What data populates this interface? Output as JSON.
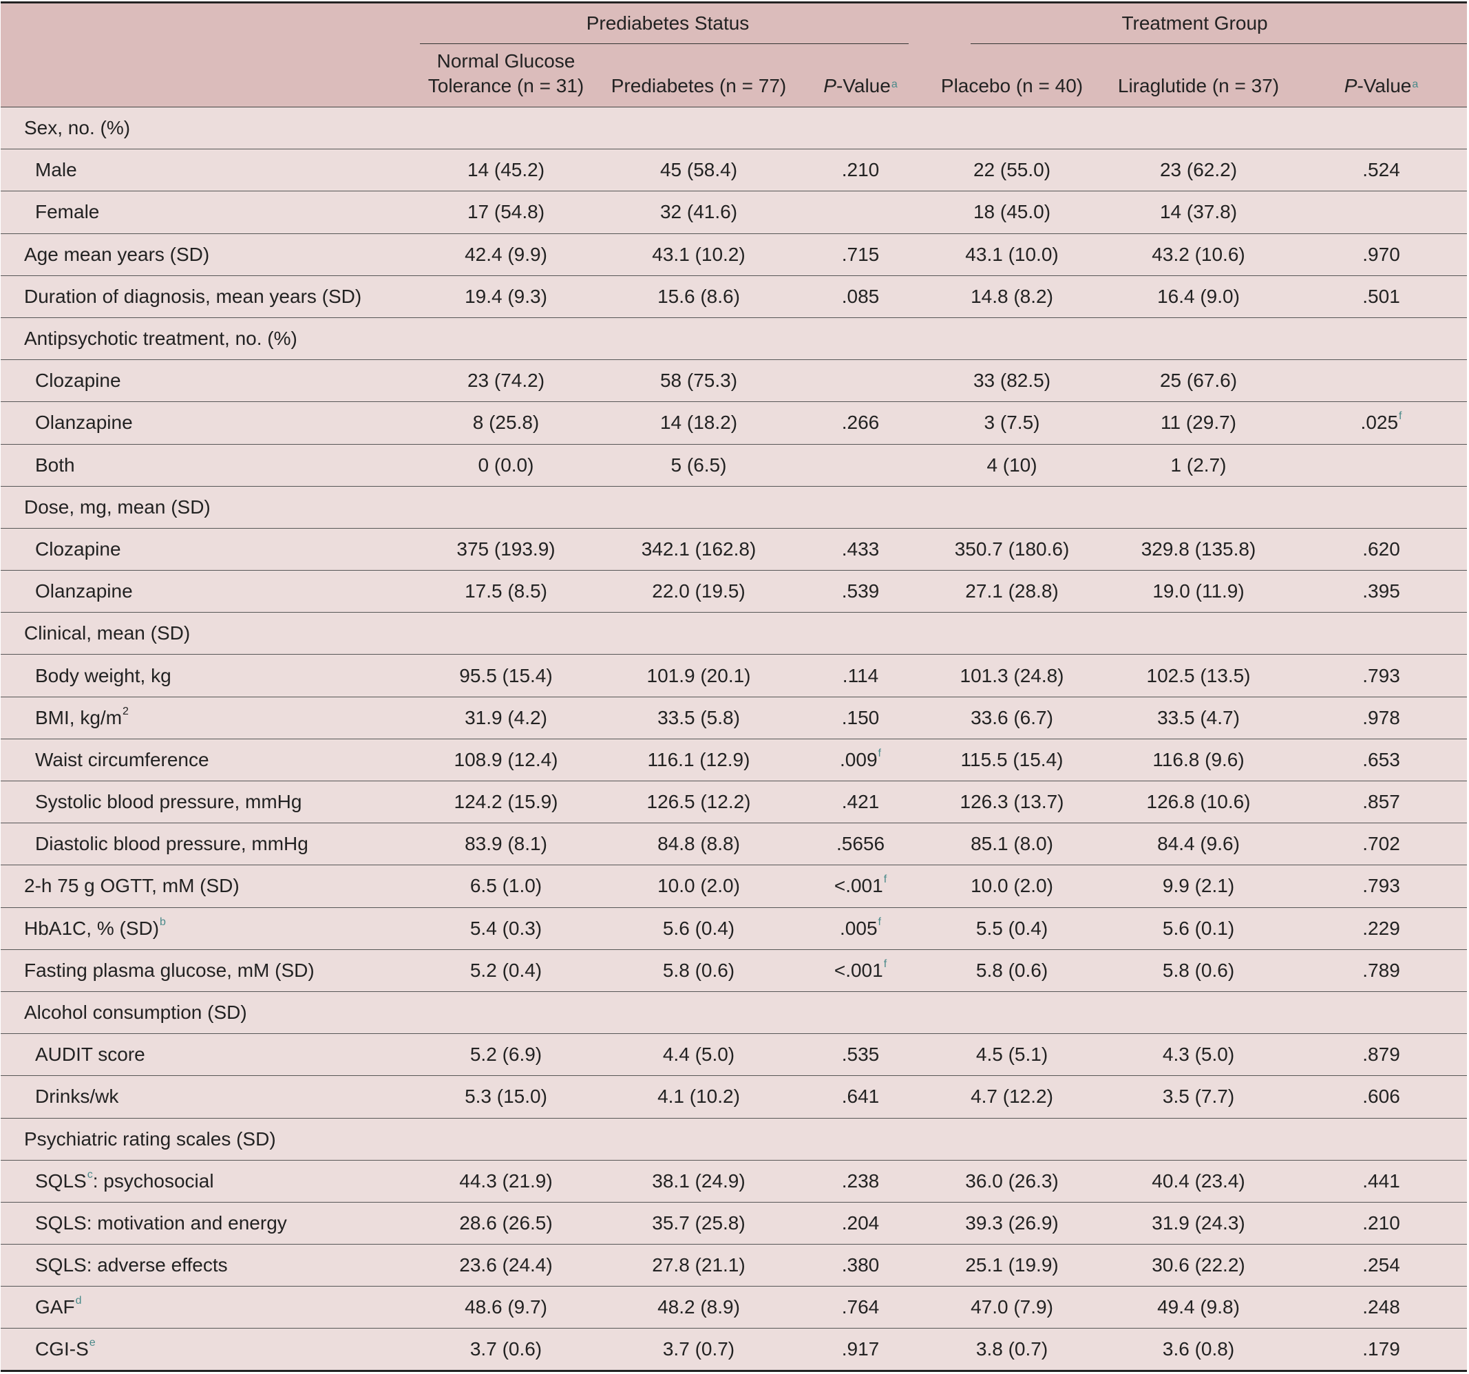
{
  "header": {
    "group1": "Prediabetes Status",
    "group2": "Treatment Group",
    "columns": [
      {
        "line1": "Normal Glucose",
        "line2": "Tolerance (n = 31)"
      },
      {
        "line1": "",
        "line2": "Prediabetes (n = 77)"
      },
      {
        "p_italic": "P",
        "p_rest": "-Value",
        "sup": "a"
      },
      {
        "line1": "",
        "line2": "Placebo (n = 40)"
      },
      {
        "line1": "",
        "line2": "Liraglutide (n = 37)"
      },
      {
        "p_italic": "P",
        "p_rest": "-Value",
        "sup": "a"
      }
    ]
  },
  "rows": [
    {
      "label": "Sex, no. (%)",
      "type": "sec",
      "cells": [
        "",
        "",
        "",
        "",
        "",
        ""
      ]
    },
    {
      "label": "Male",
      "type": "sub",
      "cells": [
        "14 (45.2)",
        "45 (58.4)",
        ".210",
        "22 (55.0)",
        "23 (62.2)",
        ".524"
      ]
    },
    {
      "label": "Female",
      "type": "sub",
      "cells": [
        "17 (54.8)",
        "32 (41.6)",
        "",
        "18 (45.0)",
        "14 (37.8)",
        ""
      ]
    },
    {
      "label": "Age mean years (SD)",
      "type": "sec",
      "cells": [
        "42.4 (9.9)",
        "43.1 (10.2)",
        ".715",
        "43.1 (10.0)",
        "43.2 (10.6)",
        ".970"
      ]
    },
    {
      "label": "Duration of diagnosis, mean years (SD)",
      "type": "sec",
      "cells": [
        "19.4 (9.3)",
        "15.6 (8.6)",
        ".085",
        "14.8 (8.2)",
        "16.4 (9.0)",
        ".501"
      ]
    },
    {
      "label": "Antipsychotic treatment, no. (%)",
      "type": "sec",
      "cells": [
        "",
        "",
        "",
        "",
        "",
        ""
      ]
    },
    {
      "label": "Clozapine",
      "type": "sub",
      "cells": [
        "23 (74.2)",
        "58 (75.3)",
        "",
        "33 (82.5)",
        "25 (67.6)",
        ""
      ]
    },
    {
      "label": "Olanzapine",
      "type": "sub",
      "cells": [
        "8 (25.8)",
        "14 (18.2)",
        ".266",
        "3 (7.5)",
        "11 (29.7)",
        ".025"
      ],
      "sups": {
        "5": "f"
      }
    },
    {
      "label": "Both",
      "type": "sub",
      "cells": [
        "0 (0.0)",
        "5 (6.5)",
        "",
        "4 (10)",
        "1 (2.7)",
        ""
      ]
    },
    {
      "label": "Dose, mg, mean (SD)",
      "type": "sec",
      "cells": [
        "",
        "",
        "",
        "",
        "",
        ""
      ]
    },
    {
      "label": "Clozapine",
      "type": "sub",
      "cells": [
        "375 (193.9)",
        "342.1 (162.8)",
        ".433",
        "350.7 (180.6)",
        "329.8 (135.8)",
        ".620"
      ]
    },
    {
      "label": "Olanzapine",
      "type": "sub",
      "cells": [
        "17.5 (8.5)",
        "22.0 (19.5)",
        ".539",
        "27.1 (28.8)",
        "19.0 (11.9)",
        ".395"
      ]
    },
    {
      "label": "Clinical, mean (SD)",
      "type": "sec",
      "cells": [
        "",
        "",
        "",
        "",
        "",
        ""
      ]
    },
    {
      "label": "Body weight, kg",
      "type": "sub",
      "cells": [
        "95.5 (15.4)",
        "101.9 (20.1)",
        ".114",
        "101.3 (24.8)",
        "102.5 (13.5)",
        ".793"
      ]
    },
    {
      "label": "BMI, kg/m",
      "type": "sub",
      "label_sup": "2",
      "label_sup_plain": true,
      "cells": [
        "31.9 (4.2)",
        "33.5 (5.8)",
        ".150",
        "33.6 (6.7)",
        "33.5 (4.7)",
        ".978"
      ]
    },
    {
      "label": "Waist circumference",
      "type": "sub",
      "cells": [
        "108.9 (12.4)",
        "116.1 (12.9)",
        ".009",
        "115.5 (15.4)",
        "116.8 (9.6)",
        ".653"
      ],
      "sups": {
        "2": "f"
      }
    },
    {
      "label": "Systolic blood pressure, mmHg",
      "type": "sub",
      "cells": [
        "124.2 (15.9)",
        "126.5 (12.2)",
        ".421",
        "126.3 (13.7)",
        "126.8 (10.6)",
        ".857"
      ]
    },
    {
      "label": "Diastolic blood pressure, mmHg",
      "type": "sub",
      "cells": [
        "83.9 (8.1)",
        "84.8 (8.8)",
        ".5656",
        "85.1 (8.0)",
        "84.4 (9.6)",
        ".702"
      ]
    },
    {
      "label": "2-h 75 g OGTT, mM (SD)",
      "type": "sec",
      "cells": [
        "6.5 (1.0)",
        "10.0 (2.0)",
        "<.001",
        "10.0 (2.0)",
        "9.9 (2.1)",
        ".793"
      ],
      "sups": {
        "2": "f"
      }
    },
    {
      "label": "HbA1C, % (SD)",
      "type": "sec",
      "label_sup": "b",
      "cells": [
        "5.4 (0.3)",
        "5.6 (0.4)",
        ".005",
        "5.5 (0.4)",
        "5.6 (0.1)",
        ".229"
      ],
      "sups": {
        "2": "f"
      }
    },
    {
      "label": "Fasting plasma glucose, mM (SD)",
      "type": "sec",
      "cells": [
        "5.2 (0.4)",
        "5.8 (0.6)",
        "<.001",
        "5.8 (0.6)",
        "5.8 (0.6)",
        ".789"
      ],
      "sups": {
        "2": "f"
      }
    },
    {
      "label": "Alcohol consumption (SD)",
      "type": "sec",
      "cells": [
        "",
        "",
        "",
        "",
        "",
        ""
      ]
    },
    {
      "label": "AUDIT score",
      "type": "sub",
      "cells": [
        "5.2 (6.9)",
        "4.4 (5.0)",
        ".535",
        "4.5 (5.1)",
        "4.3 (5.0)",
        ".879"
      ]
    },
    {
      "label": "Drinks/wk",
      "type": "sub",
      "cells": [
        "5.3 (15.0)",
        "4.1 (10.2)",
        ".641",
        "4.7 (12.2)",
        "3.5 (7.7)",
        ".606"
      ]
    },
    {
      "label": "Psychiatric rating scales (SD)",
      "type": "sec",
      "cells": [
        "",
        "",
        "",
        "",
        "",
        ""
      ]
    },
    {
      "label": "SQLS",
      "type": "sub",
      "label_sup": "c",
      "label_after": ": psychosocial",
      "cells": [
        "44.3 (21.9)",
        "38.1 (24.9)",
        ".238",
        "36.0 (26.3)",
        "40.4 (23.4)",
        ".441"
      ]
    },
    {
      "label": "SQLS: motivation and energy",
      "type": "sub",
      "cells": [
        "28.6 (26.5)",
        "35.7 (25.8)",
        ".204",
        "39.3 (26.9)",
        "31.9 (24.3)",
        ".210"
      ]
    },
    {
      "label": "SQLS: adverse effects",
      "type": "sub",
      "cells": [
        "23.6 (24.4)",
        "27.8 (21.1)",
        ".380",
        "25.1 (19.9)",
        "30.6 (22.2)",
        ".254"
      ]
    },
    {
      "label": "GAF",
      "type": "sub",
      "label_sup": "d",
      "cells": [
        "48.6 (9.7)",
        "48.2 (8.9)",
        ".764",
        "47.0 (7.9)",
        "49.4 (9.8)",
        ".248"
      ]
    },
    {
      "label": "CGI-S",
      "type": "sub",
      "label_sup": "e",
      "cells": [
        "3.7 (0.6)",
        "3.7 (0.7)",
        ".917",
        "3.8 (0.7)",
        "3.6 (0.8)",
        ".179"
      ]
    }
  ]
}
